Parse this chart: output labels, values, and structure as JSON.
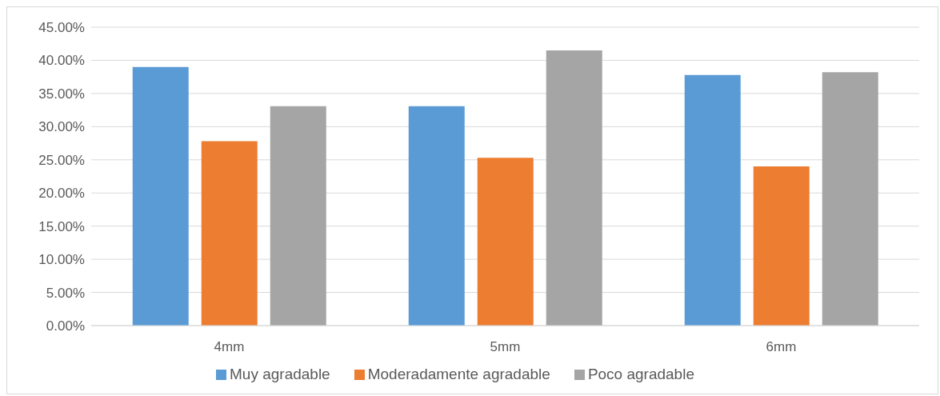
{
  "chart_data": {
    "type": "bar",
    "categories": [
      "4mm",
      "5mm",
      "6mm"
    ],
    "series": [
      {
        "name": "Muy agradable",
        "color": "#5b9bd5",
        "values": [
          39.0,
          33.1,
          37.8
        ]
      },
      {
        "name": "Moderadamente agradable",
        "color": "#ed7d31",
        "values": [
          27.8,
          25.3,
          24.0
        ]
      },
      {
        "name": "Poco agradable",
        "color": "#a5a5a5",
        "values": [
          33.1,
          41.5,
          38.2
        ]
      }
    ],
    "ylim": [
      0,
      45
    ],
    "yticks": [
      {
        "value": 0,
        "label": "0.00%"
      },
      {
        "value": 5,
        "label": "5.00%"
      },
      {
        "value": 10,
        "label": "10.00%"
      },
      {
        "value": 15,
        "label": "15.00%"
      },
      {
        "value": 20,
        "label": "20.00%"
      },
      {
        "value": 25,
        "label": "25.00%"
      },
      {
        "value": 30,
        "label": "30.00%"
      },
      {
        "value": 35,
        "label": "35.00%"
      },
      {
        "value": 40,
        "label": "40.00%"
      },
      {
        "value": 45,
        "label": "45.00%"
      }
    ],
    "grid": "y",
    "legend": "bottom"
  }
}
